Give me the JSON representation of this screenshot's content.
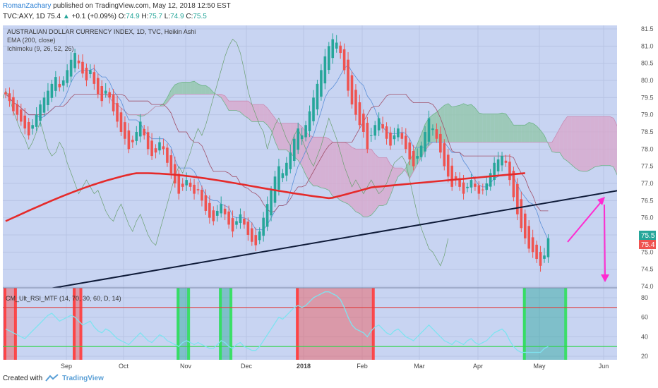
{
  "header": {
    "author": "RomanZachary",
    "published": "published on TradingView.com, May 12, 2018 12:50 EST",
    "symbol": "TVC:AXY, 1D",
    "last": "75.4",
    "change_arrow": "▲",
    "change": "+0.1 (+0.09%)",
    "o_label": "O:",
    "o_value": "74.9",
    "h_label": "H:",
    "h_value": "75.7",
    "l_label": "L:",
    "l_value": "74.9",
    "c_label": "C:",
    "c_value": "75.5"
  },
  "legend": {
    "title": "AUSTRALIAN DOLLAR CURRENCY INDEX, 1D, TVC, Heikin Ashi",
    "ema": "EMA (200, close)",
    "ichimoku": "Ichimoku (9, 26, 52, 26)",
    "rsi": "CM_Ult_RSI_MTF (14, 70, 30, 60, D, 14)"
  },
  "price_badges": {
    "green": "75.5",
    "red": "75.4"
  },
  "footer": {
    "created_with": "Created with",
    "brand": "TradingView"
  },
  "colors": {
    "panel_bg": "#c8d4f2",
    "bull": "#26a69a",
    "bear": "#ef5350",
    "ema": "#e52a2a",
    "trendline": "#0e1a38",
    "annotation": "#ff2bd0",
    "rsi_line": "#7fe3f0",
    "cloud_green": "#8fc6a6",
    "cloud_red": "#d9a6c9"
  },
  "chart_data": [
    {
      "type": "candlestick",
      "title": "AUSTRALIAN DOLLAR CURRENCY INDEX, 1D, TVC, Heikin Ashi",
      "x_tick_labels": [
        "Sep",
        "Oct",
        "Nov",
        "Dec",
        "2018",
        "Feb",
        "Mar",
        "Apr",
        "May",
        "Jun"
      ],
      "y_tick_labels": [
        "81.5",
        "81.0",
        "80.5",
        "80.0",
        "79.5",
        "79.0",
        "78.5",
        "78.0",
        "77.5",
        "77.0",
        "76.5",
        "76.0",
        "75.5",
        "75.0",
        "74.5",
        "74.0"
      ],
      "ylim": [
        74.0,
        81.5
      ],
      "closes": [
        79.6,
        79.4,
        79.1,
        79.0,
        78.8,
        78.6,
        78.4,
        78.7,
        79.0,
        79.3,
        79.5,
        79.7,
        79.9,
        80.1,
        79.8,
        80.0,
        80.3,
        80.6,
        80.8,
        80.5,
        80.2,
        80.0,
        80.3,
        79.9,
        79.6,
        79.4,
        79.7,
        79.5,
        79.1,
        78.8,
        78.5,
        78.3,
        78.0,
        78.2,
        78.5,
        78.8,
        78.4,
        78.0,
        77.8,
        77.9,
        78.2,
        78.0,
        77.6,
        77.3,
        77.0,
        76.7,
        76.9,
        77.1,
        76.9,
        76.7,
        76.8,
        76.5,
        76.2,
        76.0,
        75.9,
        76.2,
        76.4,
        76.1,
        75.8,
        75.6,
        75.9,
        76.1,
        75.8,
        75.5,
        75.3,
        75.2,
        75.6,
        76.0,
        76.4,
        76.8,
        77.2,
        77.5,
        77.3,
        77.6,
        77.9,
        78.3,
        78.6,
        78.4,
        78.7,
        79.1,
        79.5,
        79.9,
        80.3,
        80.7,
        81.0,
        81.2,
        81.1,
        80.8,
        80.3,
        79.7,
        79.3,
        79.0,
        78.7,
        78.5,
        78.0,
        78.4,
        78.7,
        78.9,
        78.6,
        78.3,
        78.1,
        78.4,
        78.6,
        78.3,
        78.0,
        77.7,
        77.5,
        77.8,
        78.1,
        78.5,
        78.9,
        78.6,
        78.3,
        77.9,
        77.5,
        77.2,
        76.9,
        77.1,
        76.9,
        76.7,
        76.9,
        77.1,
        76.9,
        76.7,
        76.8,
        77.0,
        77.3,
        77.6,
        77.7,
        77.8,
        77.6,
        77.1,
        76.6,
        76.1,
        75.7,
        75.4,
        75.1,
        75.0,
        74.8,
        74.6,
        74.9,
        75.4
      ],
      "ema200_endpoints": [
        75.9,
        77.3
      ],
      "trendline_endpoints": [
        73.9,
        76.9
      ]
    },
    {
      "type": "line",
      "title": "CM_Ult_RSI_MTF (14, 70, 30, 60, D, 14)",
      "y_tick_labels": [
        "80",
        "60",
        "40",
        "20"
      ],
      "ylim": [
        20,
        88
      ],
      "levels": [
        70,
        30
      ],
      "values": [
        48,
        46,
        44,
        42,
        40,
        38,
        42,
        46,
        50,
        54,
        58,
        62,
        64,
        60,
        56,
        58,
        60,
        62,
        60,
        56,
        52,
        54,
        56,
        50,
        46,
        44,
        48,
        46,
        42,
        38,
        36,
        34,
        32,
        36,
        40,
        44,
        40,
        36,
        34,
        38,
        42,
        40,
        36,
        34,
        32,
        30,
        34,
        36,
        34,
        32,
        34,
        32,
        30,
        28,
        28,
        32,
        36,
        34,
        30,
        28,
        32,
        34,
        30,
        28,
        26,
        26,
        30,
        36,
        42,
        48,
        54,
        60,
        58,
        62,
        66,
        70,
        72,
        70,
        72,
        76,
        80,
        82,
        84,
        86,
        86,
        84,
        82,
        78,
        70,
        60,
        52,
        48,
        46,
        44,
        40,
        46,
        50,
        52,
        48,
        44,
        42,
        46,
        48,
        44,
        40,
        38,
        36,
        40,
        44,
        48,
        52,
        48,
        44,
        40,
        36,
        34,
        32,
        36,
        34,
        32,
        36,
        38,
        34,
        32,
        34,
        36,
        40,
        44,
        46,
        48,
        44,
        36,
        30,
        26,
        24,
        24,
        24,
        24,
        24,
        24,
        28,
        30
      ]
    }
  ]
}
